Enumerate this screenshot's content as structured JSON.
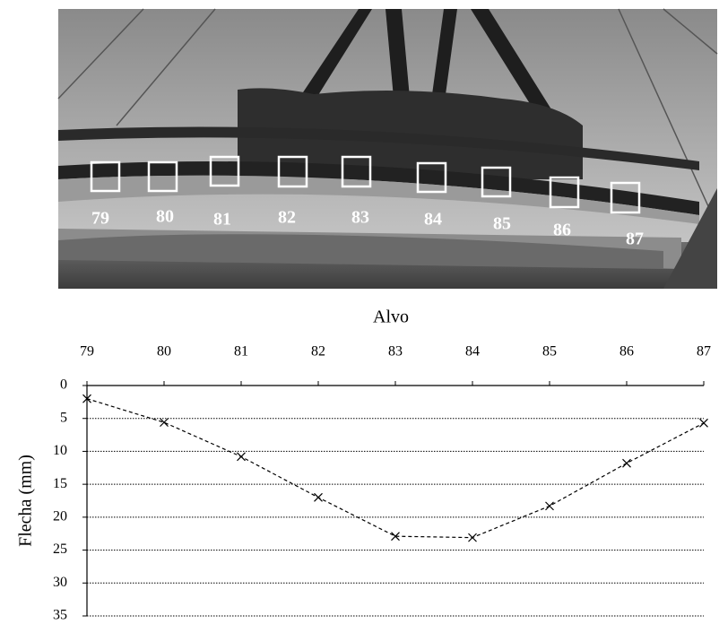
{
  "photo": {
    "target_labels": [
      "79",
      "80",
      "81",
      "82",
      "83",
      "84",
      "85",
      "86",
      "87"
    ]
  },
  "chart_data": {
    "type": "line",
    "xlabel": "Alvo",
    "ylabel": "Flecha (mm)",
    "x": [
      79,
      80,
      81,
      82,
      83,
      84,
      85,
      86,
      87
    ],
    "series": [
      {
        "color": "#000000",
        "values": [
          2.0,
          5.6,
          10.8,
          17.0,
          22.9,
          23.1,
          18.3,
          11.8,
          5.7
        ]
      }
    ],
    "xlim": [
      79,
      87
    ],
    "xticks": [
      79,
      80,
      81,
      82,
      83,
      84,
      85,
      86,
      87
    ],
    "ylim": [
      0,
      35
    ],
    "yticks": [
      0,
      5,
      10,
      15,
      20,
      25,
      30,
      35
    ],
    "y_inverted": true,
    "x_axis_position": "top",
    "grid": true
  }
}
